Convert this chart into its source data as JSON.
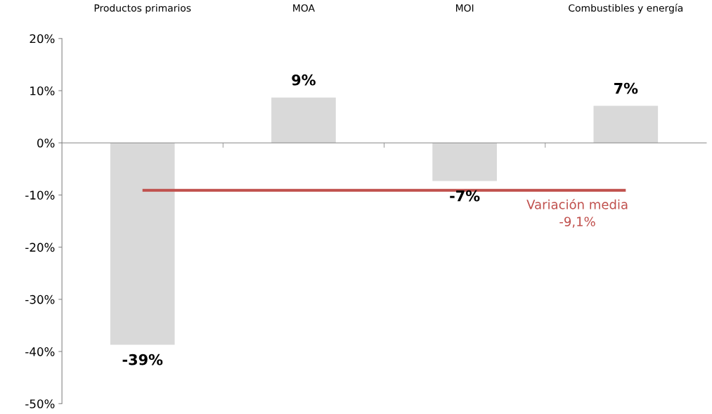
{
  "chart_data": {
    "type": "bar",
    "categories": [
      "Productos primarios",
      "MOA",
      "MOI",
      "Combustibles y energía"
    ],
    "values": [
      -38.7,
      8.7,
      -7.3,
      7.1
    ],
    "value_labels": [
      "-39%",
      "9%",
      "-7%",
      "7%"
    ],
    "color": "#d9d9d9",
    "ylim": [
      -50,
      20
    ],
    "yticks": [
      {
        "value": -50,
        "label": "-50%"
      },
      {
        "value": -40,
        "label": "-40%"
      },
      {
        "value": -30,
        "label": "-30%"
      },
      {
        "value": -20,
        "label": "-20%"
      },
      {
        "value": -10,
        "label": "-10%"
      },
      {
        "value": 0,
        "label": "0%"
      },
      {
        "value": 10,
        "label": "10%"
      },
      {
        "value": 20,
        "label": "20%"
      }
    ],
    "ref_lines": [
      {
        "axis": "y",
        "value": -9.1,
        "label": "Variación media\n-9,1%",
        "color": "#c0504d"
      }
    ]
  }
}
